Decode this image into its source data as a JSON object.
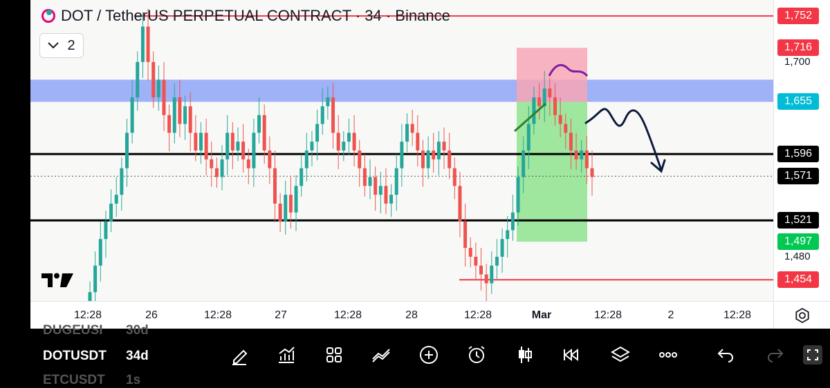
{
  "header": {
    "title": "DOT / TetherUS PERPETUAL CONTRACT · 34 · Binance",
    "collapse_count": "2"
  },
  "colors": {
    "bull": "#26a69a",
    "bear": "#ef5350",
    "zone_blue": "#8fa4f7",
    "stop_zone": "#f7a7b6",
    "target_zone": "#8fe48f",
    "label_red": "#f23645",
    "label_cyan": "#00bcd4",
    "label_green": "#00c853",
    "black": "#000000"
  },
  "chart_data": {
    "type": "candlestick",
    "title": "DOT / TetherUS PERPETUAL CONTRACT · 34 · Binance",
    "ylim": [
      1.43,
      1.77
    ],
    "y_ticks": [
      "1,700",
      "1,480"
    ],
    "x_ticks": [
      "12:28",
      "26",
      "12:28",
      "27",
      "12:28",
      "28",
      "12:28",
      "Mar",
      "12:28",
      "2",
      "12:28"
    ],
    "x_ticks_bold": [
      "Mar"
    ],
    "price_labels": [
      {
        "value": "1,752",
        "price": 1.752,
        "color": "#f23645"
      },
      {
        "value": "1,716",
        "price": 1.716,
        "color": "#f23645"
      },
      {
        "value": "1,655",
        "price": 1.655,
        "color": "#00bcd4"
      },
      {
        "value": "1,596",
        "price": 1.596,
        "color": "#000000"
      },
      {
        "value": "1,571",
        "price": 1.571,
        "color": "#000000"
      },
      {
        "value": "1,521",
        "price": 1.521,
        "color": "#000000"
      },
      {
        "value": "1,497",
        "price": 1.497,
        "color": "#00c853"
      },
      {
        "value": "1,454",
        "price": 1.454,
        "color": "#f23645"
      }
    ],
    "horizontal_lines": [
      {
        "name": "high",
        "price": 1.752,
        "color": "#f23645"
      },
      {
        "name": "resistance",
        "price": 1.596,
        "color": "#000000"
      },
      {
        "name": "support",
        "price": 1.521,
        "color": "#000000"
      },
      {
        "name": "low",
        "price": 1.454,
        "color": "#f23645"
      }
    ],
    "current_price": 1.571,
    "zones": [
      {
        "name": "supply-zone",
        "top": 1.68,
        "bottom": 1.655,
        "color": "#8fa4f7"
      },
      {
        "name": "stop-zone",
        "top": 1.716,
        "bottom": 1.655,
        "color": "#f7a7b6"
      },
      {
        "name": "target-zone",
        "top": 1.655,
        "bottom": 1.497,
        "color": "#8fe48f"
      }
    ],
    "closes": [
      1.44,
      1.47,
      1.5,
      1.52,
      1.54,
      1.55,
      1.58,
      1.62,
      1.66,
      1.7,
      1.74,
      1.7,
      1.66,
      1.68,
      1.64,
      1.62,
      1.66,
      1.63,
      1.65,
      1.62,
      1.6,
      1.62,
      1.59,
      1.58,
      1.57,
      1.59,
      1.62,
      1.6,
      1.61,
      1.59,
      1.58,
      1.62,
      1.64,
      1.6,
      1.58,
      1.54,
      1.52,
      1.55,
      1.53,
      1.56,
      1.58,
      1.6,
      1.61,
      1.63,
      1.65,
      1.66,
      1.62,
      1.6,
      1.61,
      1.62,
      1.6,
      1.58,
      1.56,
      1.57,
      1.55,
      1.56,
      1.54,
      1.55,
      1.58,
      1.61,
      1.63,
      1.62,
      1.6,
      1.58,
      1.6,
      1.59,
      1.61,
      1.6,
      1.58,
      1.56,
      1.52,
      1.49,
      1.48,
      1.47,
      1.46,
      1.45,
      1.47,
      1.48,
      1.5,
      1.51,
      1.53,
      1.57,
      1.6,
      1.63,
      1.66,
      1.65,
      1.67,
      1.66,
      1.64,
      1.63,
      1.62,
      1.6,
      1.59,
      1.6,
      1.58,
      1.57
    ]
  },
  "bottom": {
    "symbols": [
      {
        "name": "DUGEUSI",
        "tf": "30d"
      },
      {
        "name": "DOTUSDT",
        "tf": "34d"
      },
      {
        "name": "ETCUSDT",
        "tf": "1s"
      }
    ],
    "tools": [
      "pencil-icon",
      "indicators-icon",
      "grid-icon",
      "compare-icon",
      "add-icon",
      "alarm-icon",
      "candles-icon",
      "replay-icon",
      "layers-icon",
      "more-icon",
      "undo-icon",
      "redo-icon",
      "fullscreen-icon"
    ]
  }
}
